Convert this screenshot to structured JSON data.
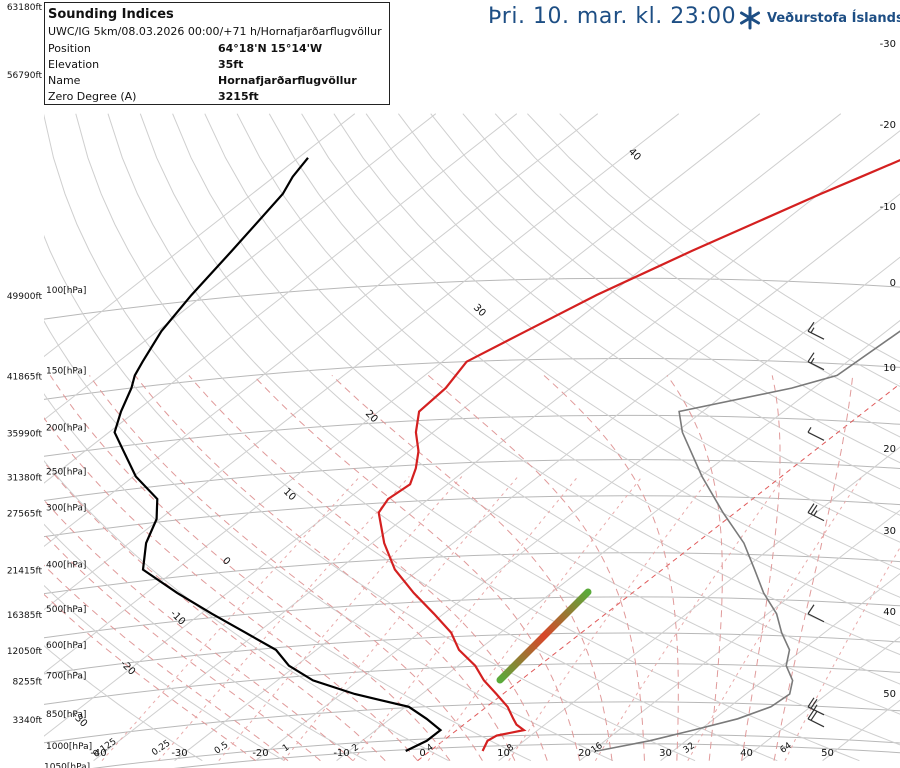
{
  "header": {
    "title": "Þri. 10. mar. kl. 23:00",
    "logo_text": "Veðurstofa Íslands"
  },
  "info_box": {
    "title": "Sounding Indices",
    "subtitle": "UWC/IG 5km/08.03.2026 00:00/+71 h/Hornafjarðarflugvöllur",
    "rows": [
      {
        "label": "Position",
        "value": "64°18'N 15°14'W"
      },
      {
        "label": "Elevation",
        "value": "35ft"
      },
      {
        "label": "Name",
        "value": "Hornafjarðarflugvöllur"
      },
      {
        "label": "Zero Degree (A)",
        "value": "3215ft"
      }
    ]
  },
  "chart_data": {
    "type": "line",
    "pressure_levels": [
      {
        "p": 100,
        "label": "100[hPa]",
        "alt": "49900ft"
      },
      {
        "p": 150,
        "label": "150[hPa]",
        "alt": "41865ft"
      },
      {
        "p": 200,
        "label": "200[hPa]",
        "alt": "35990ft"
      },
      {
        "p": 250,
        "label": "250[hPa]",
        "alt": "31380ft"
      },
      {
        "p": 300,
        "label": "300[hPa]",
        "alt": "27565ft"
      },
      {
        "p": 400,
        "label": "400[hPa]",
        "alt": "21415ft"
      },
      {
        "p": 500,
        "label": "500[hPa]",
        "alt": "16385ft"
      },
      {
        "p": 600,
        "label": "600[hPa]",
        "alt": "12050ft"
      },
      {
        "p": 700,
        "label": "700[hPa]",
        "alt": "8255ft"
      },
      {
        "p": 850,
        "label": "850[hPa]",
        "alt": "3340ft"
      },
      {
        "p": 1000,
        "label": "1000[hPa]",
        "alt": ""
      },
      {
        "p": 1050,
        "label": "1050[hPa]",
        "alt": ""
      }
    ],
    "top_altitude_labels": [
      "63180ft",
      "56790ft"
    ],
    "right_axis_labels": [
      "-30",
      "-20",
      "-10",
      "0",
      "10",
      "20",
      "30",
      "40",
      "50"
    ],
    "bottom_temperature_labels": [
      "-40",
      "-30",
      "-20",
      "-10",
      "0",
      "10",
      "20",
      "30",
      "40",
      "50"
    ],
    "bottom_mixing_ratio_labels": [
      "0.125",
      "0.25",
      "0.5",
      "1",
      "2",
      "4",
      "8",
      "16",
      "32",
      "64"
    ],
    "isotherm_labels": [
      "40",
      "30",
      "20",
      "10",
      "0",
      "-10",
      "-20",
      "-30"
    ],
    "temperature_profile": [
      [
        1000,
        6.5
      ],
      [
        975,
        6.0
      ],
      [
        950,
        5.5
      ],
      [
        925,
        5.8
      ],
      [
        900,
        8.3
      ],
      [
        875,
        6.5
      ],
      [
        850,
        5.2
      ],
      [
        800,
        2.6
      ],
      [
        750,
        -0.8
      ],
      [
        700,
        -4.5
      ],
      [
        650,
        -7.9
      ],
      [
        600,
        -12.4
      ],
      [
        550,
        -16.1
      ],
      [
        500,
        -21.2
      ],
      [
        450,
        -27.0
      ],
      [
        400,
        -33.0
      ],
      [
        350,
        -38.5
      ],
      [
        300,
        -44.0
      ],
      [
        280,
        -45.0
      ],
      [
        260,
        -44.6
      ],
      [
        240,
        -46.4
      ],
      [
        220,
        -48.8
      ],
      [
        200,
        -52.1
      ],
      [
        180,
        -55.0
      ],
      [
        160,
        -55.4
      ],
      [
        140,
        -57.0
      ],
      [
        120,
        -54.5
      ],
      [
        100,
        -51.5
      ],
      [
        80,
        -46.7
      ],
      [
        60,
        -39.8
      ],
      [
        55,
        -37.5
      ],
      [
        50,
        -35.0
      ]
    ],
    "dewpoint_profile": [
      [
        1000,
        -3.0
      ],
      [
        950,
        -2.0
      ],
      [
        900,
        -2.0
      ],
      [
        850,
        -5.5
      ],
      [
        800,
        -9.6
      ],
      [
        750,
        -18.3
      ],
      [
        700,
        -25.6
      ],
      [
        650,
        -30.9
      ],
      [
        600,
        -35.0
      ],
      [
        550,
        -41.5
      ],
      [
        500,
        -48.6
      ],
      [
        450,
        -56.2
      ],
      [
        400,
        -64.1
      ],
      [
        350,
        -67.9
      ],
      [
        310,
        -70.4
      ],
      [
        300,
        -71.4
      ],
      [
        280,
        -73.5
      ],
      [
        250,
        -79.7
      ],
      [
        220,
        -85.2
      ],
      [
        200,
        -89.3
      ],
      [
        180,
        -91.8
      ],
      [
        160,
        -94.2
      ],
      [
        150,
        -95.8
      ],
      [
        140,
        -97.0
      ],
      [
        120,
        -99.5
      ],
      [
        100,
        -101.5
      ],
      [
        80,
        -103.5
      ],
      [
        60,
        -106.2
      ],
      [
        55,
        -107.7
      ],
      [
        50,
        -108.8
      ]
    ],
    "parcel_path": [
      [
        1000,
        20.6
      ],
      [
        950,
        25.5
      ],
      [
        900,
        29.2
      ],
      [
        850,
        32.9
      ],
      [
        800,
        35.1
      ],
      [
        750,
        35.4
      ],
      [
        700,
        33.6
      ],
      [
        650,
        30.5
      ],
      [
        600,
        28.4
      ],
      [
        550,
        24.7
      ],
      [
        500,
        21.1
      ],
      [
        450,
        16.2
      ],
      [
        400,
        11.4
      ],
      [
        350,
        5.9
      ],
      [
        300,
        -1.5
      ],
      [
        250,
        -9.8
      ],
      [
        200,
        -19.2
      ],
      [
        180,
        -22.9
      ],
      [
        160,
        -12.7
      ],
      [
        150,
        -9.1
      ],
      [
        120,
        -8.3
      ],
      [
        100,
        -7.0
      ],
      [
        80,
        -4.1
      ],
      [
        60,
        -0.2
      ],
      [
        55,
        0.6
      ],
      [
        50,
        1.5
      ]
    ],
    "wind_barbs": [
      {
        "p": 850,
        "speed_kt": 20
      },
      {
        "p": 800,
        "speed_kt": 25
      },
      {
        "p": 500,
        "speed_kt": 10
      },
      {
        "p": 300,
        "speed_kt": 25
      },
      {
        "p": 200,
        "speed_kt": 5
      },
      {
        "p": 140,
        "speed_kt": 15
      },
      {
        "p": 120,
        "speed_kt": 15
      }
    ],
    "colors": {
      "temperature": "#d42020",
      "dewpoint": "#000000",
      "parcel": "#7a7a7a",
      "isobar": "#b8b8b8",
      "isotherm": "#cfcfcf",
      "dry_adiabat": "#cfcfcf",
      "moist_adiabat": "#e09a9a",
      "mixing_ratio": "#e8aaaa",
      "zero_isotherm": "#e05a5a",
      "cape_start": "#5aaa3a",
      "cape_end": "#d8462a"
    }
  }
}
